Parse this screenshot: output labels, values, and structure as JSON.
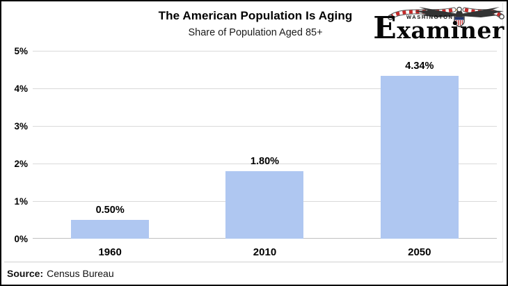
{
  "chart_data": {
    "type": "bar",
    "title": "The American Population Is Aging",
    "subtitle": "Share of Population Aged 85+",
    "categories": [
      "1960",
      "2010",
      "2050"
    ],
    "values": [
      0.5,
      1.8,
      4.34
    ],
    "value_labels": [
      "0.50%",
      "1.80%",
      "4.34%"
    ],
    "xlabel": "",
    "ylabel": "",
    "ylim": [
      0,
      5
    ],
    "yticks": [
      "0%",
      "1%",
      "2%",
      "3%",
      "4%",
      "5%"
    ],
    "grid": true,
    "legend": false,
    "bar_color": "#AFC7F1",
    "gridline_color": "#D9D9D9",
    "zero_line_color": "#C0C0C0"
  },
  "logo": {
    "kicker": "WASHINGTON",
    "name_initial": "E",
    "name_rest": "xaminer"
  },
  "source": {
    "label": "Source:",
    "text": "Census Bureau"
  }
}
